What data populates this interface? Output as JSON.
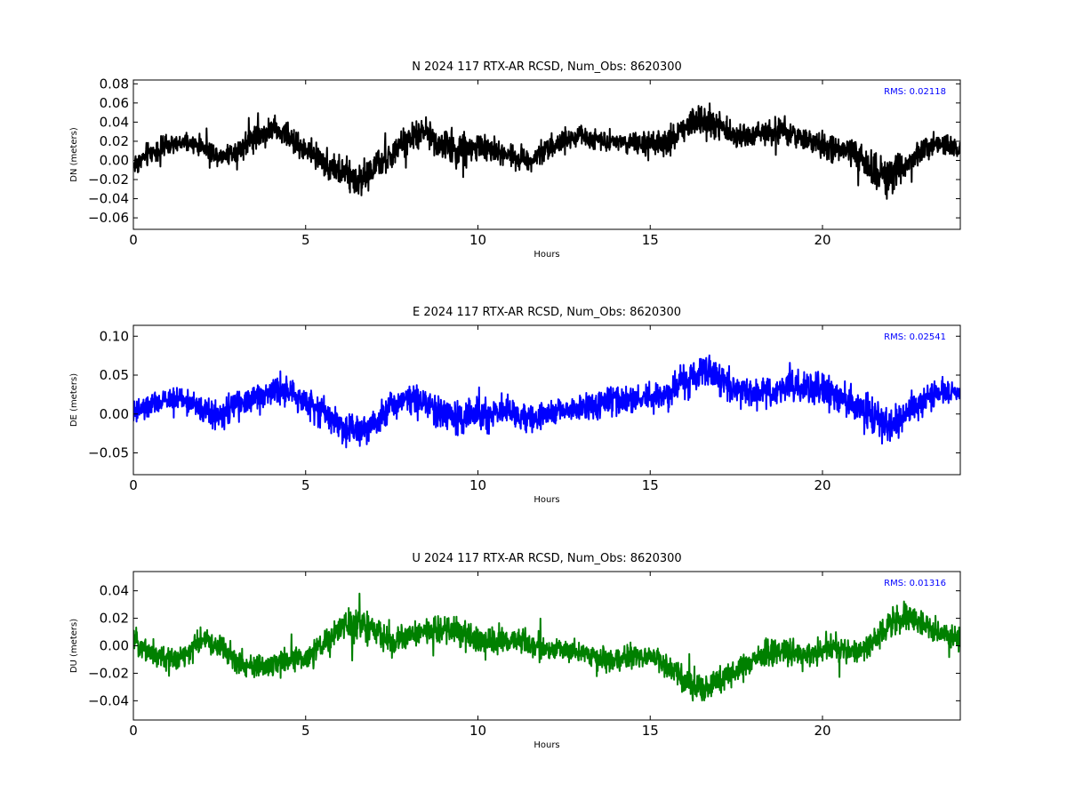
{
  "chart_data": [
    {
      "type": "line",
      "title": "N 2024 117 RTX-AR  RCSD, Num_Obs: 8620300",
      "xlabel": "Hours",
      "ylabel": "DN (meters)",
      "xlim": [
        0,
        24
      ],
      "ylim": [
        -0.072,
        0.084
      ],
      "xticks": [
        0,
        5,
        10,
        15,
        20
      ],
      "xtick_labels": [
        "0",
        "5",
        "10",
        "15",
        "20"
      ],
      "yticks": [
        -0.06,
        -0.04,
        -0.02,
        0.0,
        0.02,
        0.04,
        0.06,
        0.08
      ],
      "ytick_labels": [
        "−0.06",
        "−0.04",
        "−0.02",
        "0.00",
        "0.02",
        "0.04",
        "0.06",
        "0.08"
      ],
      "annotation": "RMS:  0.02118",
      "color": "#000000",
      "grid": false,
      "series": [
        {
          "x": [
            0,
            0.5,
            1,
            1.5,
            2,
            2.5,
            3,
            3.5,
            4,
            4.5,
            5,
            5.5,
            6,
            6.5,
            7,
            7.5,
            8,
            8.5,
            9,
            9.5,
            10,
            10.5,
            11,
            11.5,
            12,
            12.5,
            13,
            13.5,
            14,
            14.5,
            15,
            15.5,
            16,
            16.5,
            17,
            17.5,
            18,
            18.5,
            19,
            19.5,
            20,
            20.5,
            21,
            21.5,
            22,
            22.5,
            23,
            23.5,
            24
          ],
          "y": [
            -0.005,
            0.008,
            0.015,
            0.018,
            0.015,
            0.005,
            0.01,
            0.025,
            0.032,
            0.025,
            0.01,
            0.0,
            -0.012,
            -0.02,
            -0.008,
            0.005,
            0.022,
            0.03,
            0.015,
            0.01,
            0.015,
            0.01,
            0.005,
            0.0,
            0.012,
            0.02,
            0.025,
            0.022,
            0.02,
            0.018,
            0.015,
            0.018,
            0.035,
            0.045,
            0.035,
            0.025,
            0.028,
            0.03,
            0.028,
            0.022,
            0.015,
            0.01,
            0.005,
            -0.01,
            -0.018,
            0.0,
            0.012,
            0.018,
            0.01
          ],
          "amplitude": [
            0.018,
            0.018,
            0.015,
            0.014,
            0.014,
            0.016,
            0.018,
            0.02,
            0.02,
            0.018,
            0.018,
            0.022,
            0.025,
            0.026,
            0.022,
            0.02,
            0.02,
            0.022,
            0.024,
            0.026,
            0.024,
            0.022,
            0.02,
            0.018,
            0.016,
            0.016,
            0.016,
            0.016,
            0.015,
            0.016,
            0.018,
            0.02,
            0.026,
            0.028,
            0.022,
            0.018,
            0.018,
            0.02,
            0.02,
            0.018,
            0.02,
            0.022,
            0.024,
            0.03,
            0.03,
            0.022,
            0.018,
            0.018,
            0.016
          ]
        }
      ]
    },
    {
      "type": "line",
      "title": "E 2024 117 RTX-AR  RCSD, Num_Obs: 8620300",
      "xlabel": "Hours",
      "ylabel": "DE (meters)",
      "xlim": [
        0,
        24
      ],
      "ylim": [
        -0.078,
        0.114
      ],
      "xticks": [
        0,
        5,
        10,
        15,
        20
      ],
      "xtick_labels": [
        "0",
        "5",
        "10",
        "15",
        "20"
      ],
      "yticks": [
        -0.05,
        0.0,
        0.05,
        0.1
      ],
      "ytick_labels": [
        "−0.05",
        "0.00",
        "0.05",
        "0.10"
      ],
      "annotation": "RMS:  0.02541",
      "color": "#0000ff",
      "grid": false,
      "series": [
        {
          "x": [
            0,
            0.5,
            1,
            1.5,
            2,
            2.5,
            3,
            3.5,
            4,
            4.5,
            5,
            5.5,
            6,
            6.5,
            7,
            7.5,
            8,
            8.5,
            9,
            9.5,
            10,
            10.5,
            11,
            11.5,
            12,
            12.5,
            13,
            13.5,
            14,
            14.5,
            15,
            15.5,
            16,
            16.5,
            17,
            17.5,
            18,
            18.5,
            19,
            19.5,
            20,
            20.5,
            21,
            21.5,
            22,
            22.5,
            23,
            23.5,
            24
          ],
          "y": [
            0.0,
            0.01,
            0.018,
            0.02,
            0.005,
            -0.005,
            0.012,
            0.02,
            0.03,
            0.028,
            0.015,
            0.005,
            -0.015,
            -0.02,
            -0.01,
            0.01,
            0.025,
            0.015,
            0.0,
            -0.005,
            0.0,
            0.005,
            0.0,
            -0.005,
            -0.002,
            0.005,
            0.008,
            0.012,
            0.018,
            0.02,
            0.02,
            0.025,
            0.04,
            0.06,
            0.045,
            0.03,
            0.025,
            0.028,
            0.035,
            0.03,
            0.03,
            0.02,
            0.01,
            -0.005,
            -0.015,
            0.005,
            0.02,
            0.03,
            0.025
          ],
          "amplitude": [
            0.024,
            0.024,
            0.022,
            0.022,
            0.022,
            0.022,
            0.024,
            0.026,
            0.026,
            0.024,
            0.024,
            0.028,
            0.032,
            0.032,
            0.028,
            0.026,
            0.026,
            0.028,
            0.03,
            0.032,
            0.03,
            0.028,
            0.026,
            0.024,
            0.022,
            0.024,
            0.026,
            0.028,
            0.028,
            0.028,
            0.028,
            0.028,
            0.032,
            0.034,
            0.03,
            0.026,
            0.026,
            0.028,
            0.03,
            0.03,
            0.034,
            0.03,
            0.03,
            0.034,
            0.034,
            0.028,
            0.024,
            0.022,
            0.02
          ]
        }
      ]
    },
    {
      "type": "line",
      "title": "U 2024 117 RTX-AR  RCSD, Num_Obs: 8620300",
      "xlabel": "Hours",
      "ylabel": "DU (meters)",
      "xlim": [
        0,
        24
      ],
      "ylim": [
        -0.054,
        0.054
      ],
      "xticks": [
        0,
        5,
        10,
        15,
        20
      ],
      "xtick_labels": [
        "0",
        "5",
        "10",
        "15",
        "20"
      ],
      "yticks": [
        -0.04,
        -0.02,
        0.0,
        0.02,
        0.04
      ],
      "ytick_labels": [
        "−0.04",
        "−0.02",
        "0.00",
        "0.02",
        "0.04"
      ],
      "annotation": "RMS:  0.01316",
      "color": "#008000",
      "grid": false,
      "series": [
        {
          "x": [
            0,
            0.5,
            1,
            1.5,
            2,
            2.5,
            3,
            3.5,
            4,
            4.5,
            5,
            5.5,
            6,
            6.5,
            7,
            7.5,
            8,
            8.5,
            9,
            9.5,
            10,
            10.5,
            11,
            11.5,
            12,
            12.5,
            13,
            13.5,
            14,
            14.5,
            15,
            15.5,
            16,
            16.5,
            17,
            17.5,
            18,
            18.5,
            19,
            19.5,
            20,
            20.5,
            21,
            21.5,
            22,
            22.5,
            23,
            23.5,
            24
          ],
          "y": [
            0.005,
            -0.005,
            -0.01,
            -0.008,
            0.005,
            0.0,
            -0.012,
            -0.015,
            -0.015,
            -0.008,
            -0.01,
            0.0,
            0.012,
            0.018,
            0.01,
            0.002,
            0.008,
            0.01,
            0.012,
            0.01,
            0.005,
            0.002,
            0.005,
            0.002,
            -0.002,
            -0.004,
            -0.005,
            -0.01,
            -0.012,
            -0.008,
            -0.008,
            -0.015,
            -0.025,
            -0.032,
            -0.025,
            -0.018,
            -0.01,
            -0.005,
            -0.005,
            -0.008,
            -0.002,
            -0.002,
            -0.005,
            0.005,
            0.015,
            0.02,
            0.015,
            0.008,
            0.005
          ],
          "amplitude": [
            0.012,
            0.012,
            0.012,
            0.013,
            0.013,
            0.013,
            0.013,
            0.013,
            0.014,
            0.013,
            0.013,
            0.014,
            0.016,
            0.016,
            0.015,
            0.013,
            0.013,
            0.014,
            0.014,
            0.015,
            0.016,
            0.014,
            0.013,
            0.013,
            0.012,
            0.012,
            0.012,
            0.012,
            0.013,
            0.014,
            0.013,
            0.014,
            0.015,
            0.015,
            0.014,
            0.013,
            0.014,
            0.015,
            0.014,
            0.013,
            0.013,
            0.013,
            0.013,
            0.015,
            0.016,
            0.017,
            0.013,
            0.012,
            0.012
          ]
        }
      ]
    }
  ]
}
